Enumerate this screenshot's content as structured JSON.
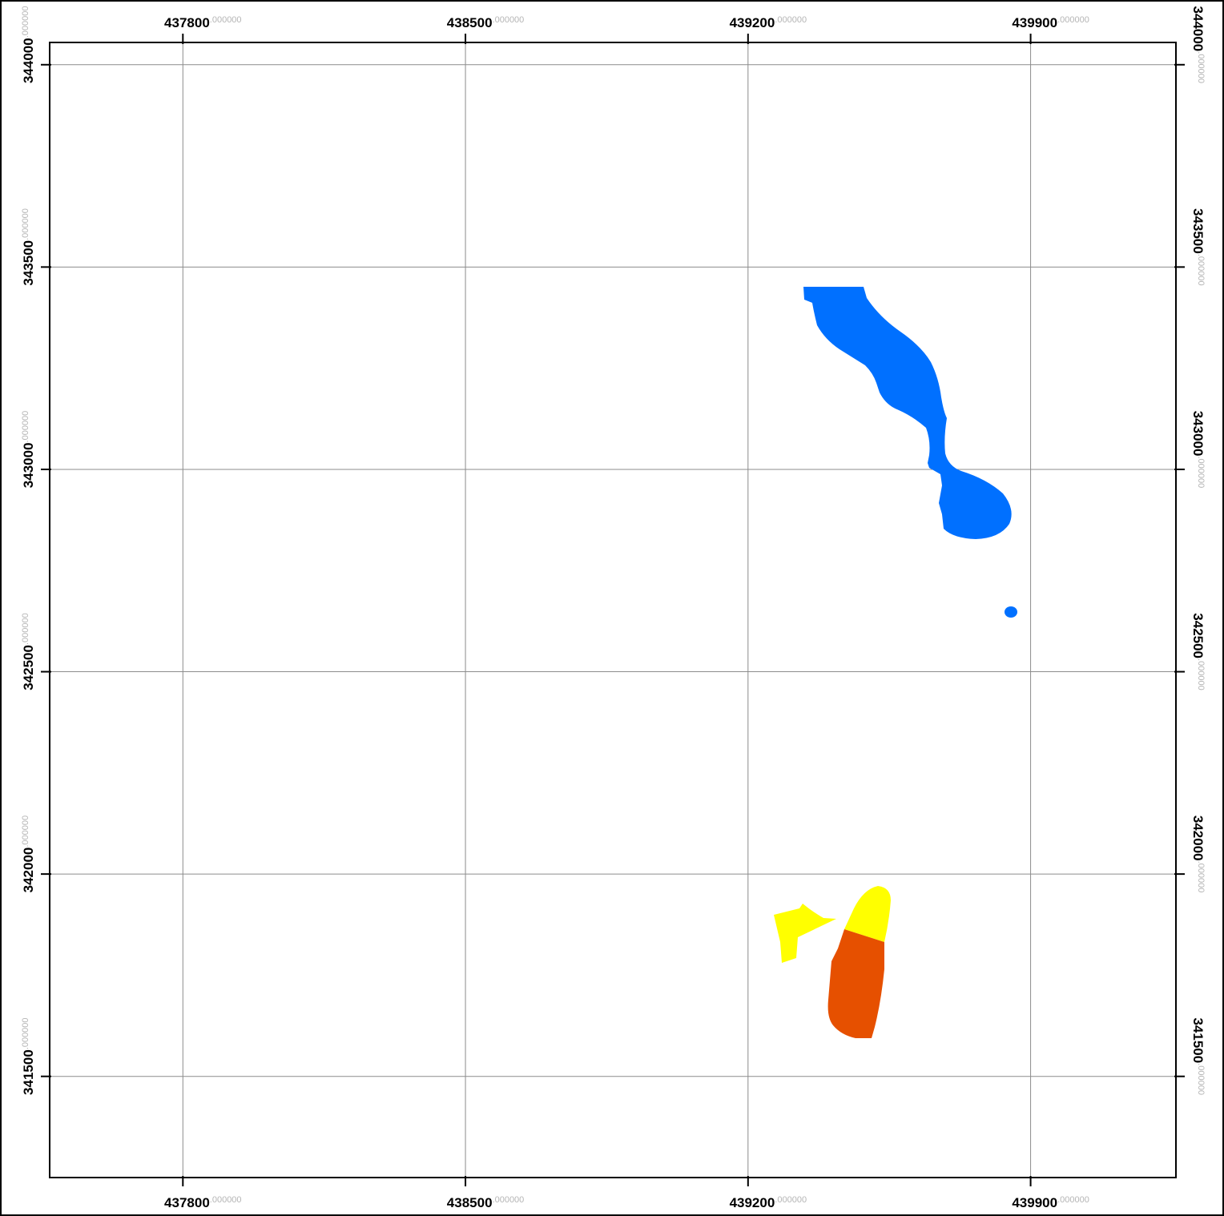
{
  "map": {
    "x_ticks": [
      {
        "main": "437800",
        "dec": ".000000",
        "value": 437800
      },
      {
        "main": "438500",
        "dec": ".000000",
        "value": 438500
      },
      {
        "main": "439200",
        "dec": ".000000",
        "value": 439200
      },
      {
        "main": "439900",
        "dec": ".000000",
        "value": 439900
      }
    ],
    "y_ticks": [
      {
        "main": "344000",
        "dec": ".000000",
        "value": 344000
      },
      {
        "main": "343500",
        "dec": ".000000",
        "value": 343500
      },
      {
        "main": "343000",
        "dec": ".000000",
        "value": 343000
      },
      {
        "main": "342500",
        "dec": ".000000",
        "value": 342500
      },
      {
        "main": "342000",
        "dec": ".000000",
        "value": 342000
      },
      {
        "main": "341500",
        "dec": ".000000",
        "value": 341500
      }
    ],
    "x_range": [
      437470,
      440260
    ],
    "y_range": [
      341250,
      344055
    ],
    "grid": true,
    "features": [
      {
        "name": "blue-river-region",
        "color": "#0070ff"
      },
      {
        "name": "blue-small-spot",
        "color": "#0070ff"
      },
      {
        "name": "yellow-wedge-region",
        "color": "#ffff00"
      },
      {
        "name": "yellow-upper-region",
        "color": "#ffff00"
      },
      {
        "name": "orange-region",
        "color": "#e65000"
      }
    ]
  }
}
